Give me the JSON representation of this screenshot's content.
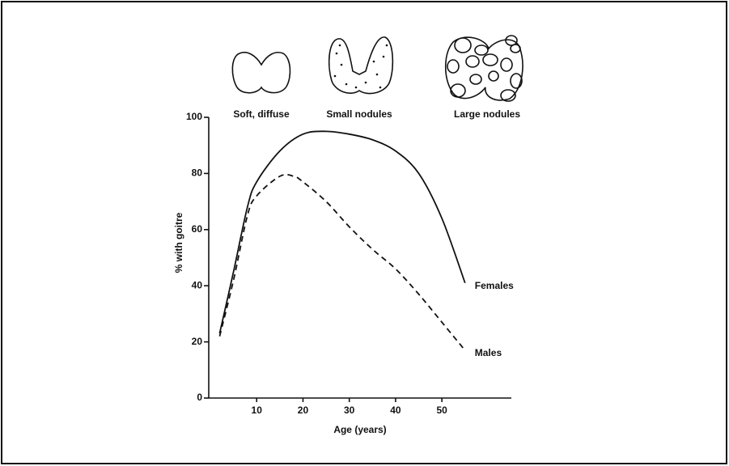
{
  "chart_data": {
    "type": "line",
    "annotations": [
      "Soft, diffuse",
      "Small nodules",
      "Large nodules"
    ],
    "xlabel": "Age (years)",
    "ylabel": "% with goitre",
    "xlim": [
      0,
      65
    ],
    "xticks": [
      10,
      20,
      30,
      40,
      50
    ],
    "ylim": [
      0,
      100
    ],
    "yticks": [
      0,
      20,
      40,
      60,
      80,
      100
    ],
    "series": [
      {
        "name": "Females",
        "color": "#111111",
        "dash": "solid",
        "x": [
          2,
          5,
          8,
          10,
          15,
          20,
          25,
          30,
          35,
          40,
          45,
          50,
          55
        ],
        "values": [
          23,
          45,
          68,
          77,
          88,
          94,
          95,
          94,
          92,
          88,
          80,
          64,
          41
        ]
      },
      {
        "name": "Males",
        "color": "#111111",
        "dash": "dashed",
        "x": [
          2,
          5,
          8,
          10,
          15,
          18,
          20,
          25,
          30,
          35,
          40,
          45,
          50,
          55
        ],
        "values": [
          22,
          42,
          65,
          72,
          79,
          79,
          77,
          70,
          61,
          53,
          46,
          37,
          27,
          17
        ]
      }
    ]
  }
}
